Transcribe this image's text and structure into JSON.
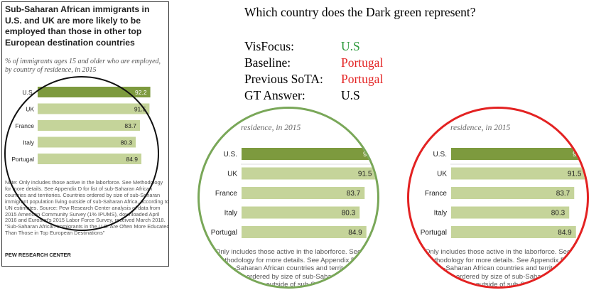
{
  "original": {
    "title": "Sub-Saharan African immigrants in U.S. and UK are more likely to be employed than those in other top European destination countries",
    "subtitle": "% of immigrants ages 15 and older who are employed, by country of residence, in 2015",
    "note": "Note: Only includes those active in the laborforce. See Methodology for more details. See Appendix D for list of sub-Saharan African countries and territories. Countries ordered by size of sub-Saharan immigrant population living outside of sub-Saharan Africa, according to UN estimates. Source: Pew Research Center analysis of data from 2015 American Community Survey (1% IPUMS), downloaded April 2016 and Eurostat's 2015 Labor Force Survey, received March 2018. \"Sub-Saharan African Immigrants in the U.S. Are Often More Educated Than Those in Top European Destinations\"",
    "source": "PEW RESEARCH CENTER"
  },
  "chart_data": {
    "type": "bar",
    "orientation": "horizontal",
    "title": "Sub-Saharan African immigrants in U.S. and UK are more likely to be employed than those in other top European destination countries",
    "subtitle": "% of immigrants ages 15 and older who are employed, by country of residence, in 2015",
    "categories": [
      "U.S.",
      "UK",
      "France",
      "Italy",
      "Portugal"
    ],
    "values": [
      92.2,
      91.5,
      83.7,
      80.3,
      84.9
    ],
    "value_labels": [
      "92.2",
      "91.5",
      "83.7",
      "80.3",
      "84.9"
    ],
    "colors": [
      "#7d9a3e",
      "#c5d49a",
      "#c5d49a",
      "#c5d49a",
      "#c5d49a"
    ],
    "xlim": [
      0,
      100
    ],
    "grid": false,
    "legend": "none"
  },
  "zoom_partial": {
    "subtitle_fragment": "residence, in 2015",
    "us_value_fragment": "92.",
    "note_fragment": "Only includes those active in the laborforce. See Methodology for more details. See Appendix D for list of sub-Saharan African countries and territories. Countries ordered by size of sub-Saharan immigrant population living outside of sub-Saharan Africa"
  },
  "qa": {
    "question": "Which country does the Dark green represent?",
    "rows": [
      {
        "label": "VisFocus:",
        "value": "U.S",
        "color": "#2e9a3c"
      },
      {
        "label": "Baseline:",
        "value": "Portugal",
        "color": "#e32222"
      },
      {
        "label": "Previous SoTA:",
        "value": "Portugal",
        "color": "#e32222"
      },
      {
        "label": "GT Answer:",
        "value": "U.S",
        "color": "#000000"
      }
    ]
  },
  "colors": {
    "dark_green": "#7d9a3e",
    "light_green": "#c5d49a",
    "green_circle": "#79a758",
    "red_circle": "#e32222"
  }
}
